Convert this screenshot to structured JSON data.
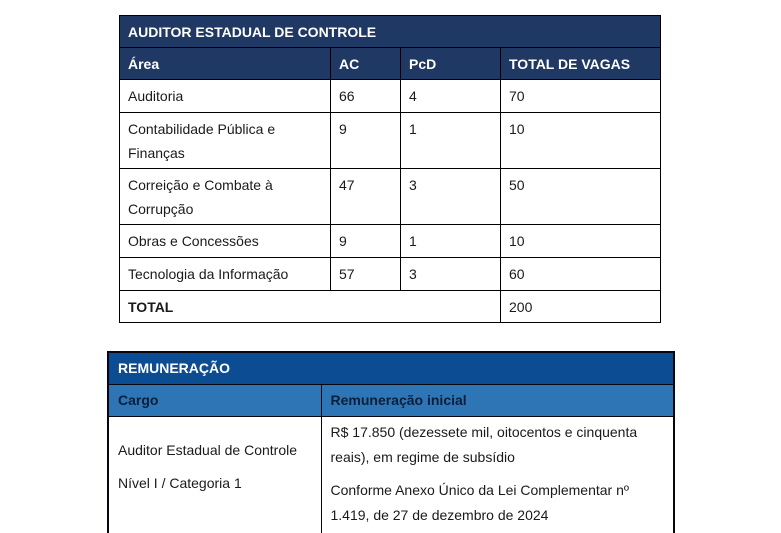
{
  "vagas_table": {
    "title": "AUDITOR ESTADUAL DE CONTROLE",
    "headers": {
      "area": "Área",
      "ac": "AC",
      "pcd": "PcD",
      "total": "TOTAL DE VAGAS"
    },
    "rows": [
      {
        "area": "Auditoria",
        "ac": "66",
        "pcd": "4",
        "total": "70"
      },
      {
        "area": "Contabilidade Pública e Finanças",
        "ac": "9",
        "pcd": "1",
        "total": "10"
      },
      {
        "area": "Correição e Combate à Corrupção",
        "ac": "47",
        "pcd": "3",
        "total": "50"
      },
      {
        "area": "Obras e Concessões",
        "ac": "9",
        "pcd": "1",
        "total": "10"
      },
      {
        "area": "Tecnologia da Informação",
        "ac": "57",
        "pcd": "3",
        "total": "60"
      }
    ],
    "footer": {
      "label": "TOTAL",
      "total": "200"
    },
    "colors": {
      "header_bg": "#1F3864",
      "header_text": "#FFFFFF",
      "border": "#000000"
    }
  },
  "remuneracao_table": {
    "title": "REMUNERAÇÃO",
    "headers": {
      "cargo": "Cargo",
      "remuneracao": "Remuneração inicial"
    },
    "row": {
      "cargo_line1": "Auditor Estadual de Controle",
      "cargo_line2": "Nível I / Categoria 1",
      "remuneracao_p1": "R$ 17.850 (dezessete mil, oitocentos e cinquenta reais), em regime de subsídio",
      "remuneracao_p2": "Conforme Anexo Único da Lei Complementar nº 1.419, de 27 de dezembro de 2024"
    },
    "colors": {
      "title_bg": "#0B4C93",
      "subheader_bg": "#2E75B6",
      "subheader_text": "#0B1F3A",
      "border": "#000000"
    }
  }
}
